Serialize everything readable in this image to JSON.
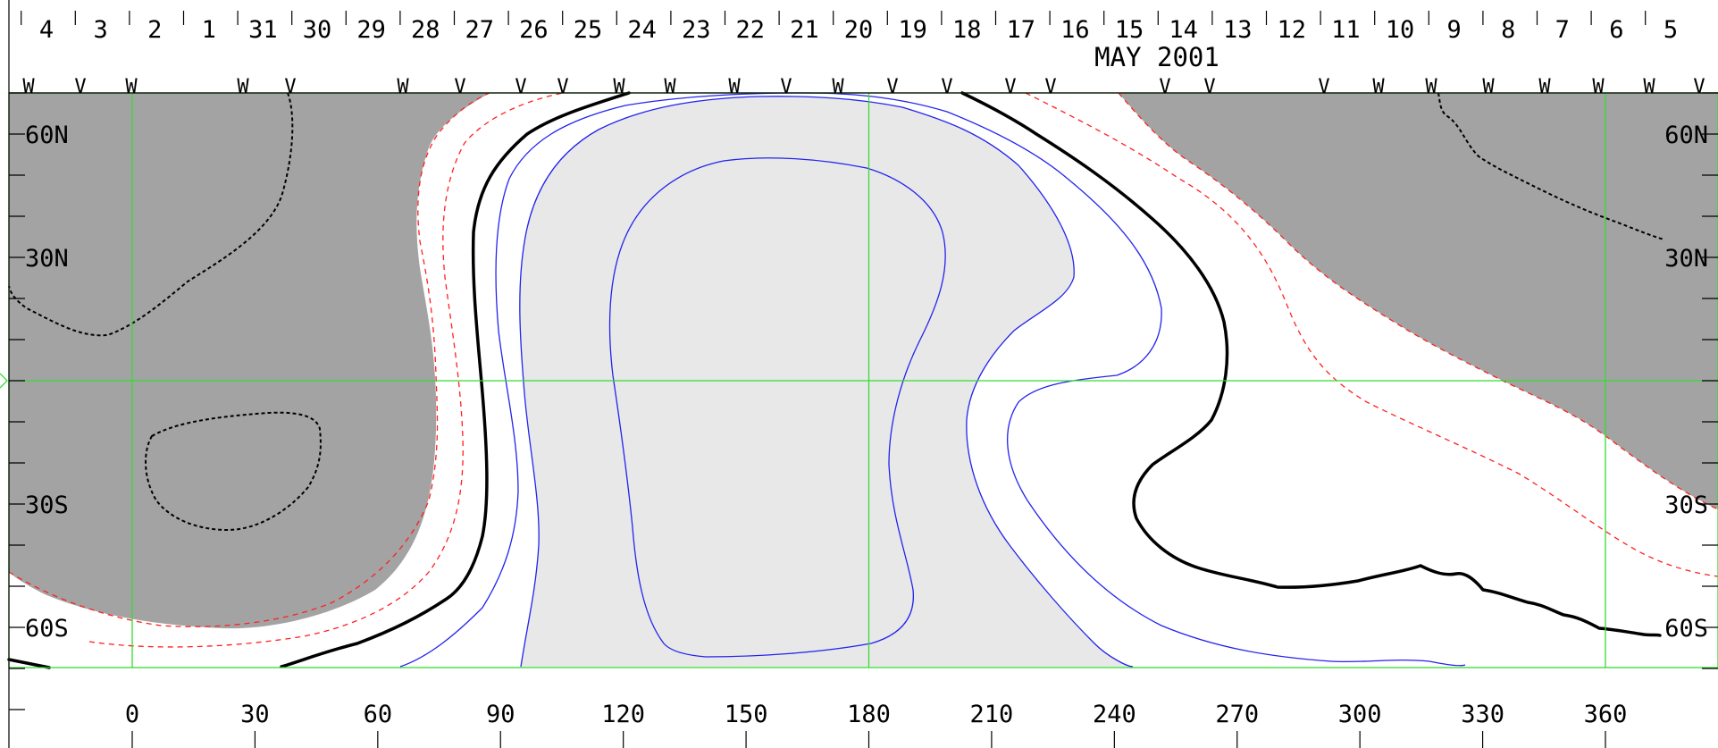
{
  "chart_data": {
    "type": "contour",
    "month_label": "MAY 2001",
    "top_day_labels": [
      "4",
      "3",
      "2",
      "1",
      "31",
      "30",
      "29",
      "28",
      "27",
      "26",
      "25",
      "24",
      "23",
      "22",
      "21",
      "20",
      "19",
      "18",
      "17",
      "16",
      "15",
      "14",
      "13",
      "12",
      "11",
      "10",
      "9",
      "8",
      "7",
      "6",
      "5"
    ],
    "x_tick_labels": [
      "0",
      "30",
      "60",
      "90",
      "120",
      "150",
      "180",
      "210",
      "240",
      "270",
      "300",
      "330",
      "360"
    ],
    "x_ticks": [
      0,
      30,
      60,
      90,
      120,
      150,
      180,
      210,
      240,
      270,
      300,
      330,
      360
    ],
    "y_tick_labels_left": [
      "60N",
      "30N",
      "30S",
      "60S"
    ],
    "y_tick_labels_right": [
      "60N",
      "30N",
      "30S",
      "60S"
    ],
    "y_ticks": [
      60,
      30,
      -30,
      -60
    ],
    "xlim": [
      -30,
      390
    ],
    "ylim": [
      -70,
      70
    ],
    "grid_lines_x": [
      0,
      180,
      360
    ],
    "grid_lines_y": [
      0
    ],
    "colors": {
      "grid": "#33dd33",
      "negative_fill": "#a3a3a3",
      "positive_fill": "#e8e8e8",
      "zero_line": "#000000",
      "dashed_red": "#ff2020",
      "blue_contour": "#2323ee"
    },
    "marker_symbols": [
      "V",
      "W"
    ]
  }
}
